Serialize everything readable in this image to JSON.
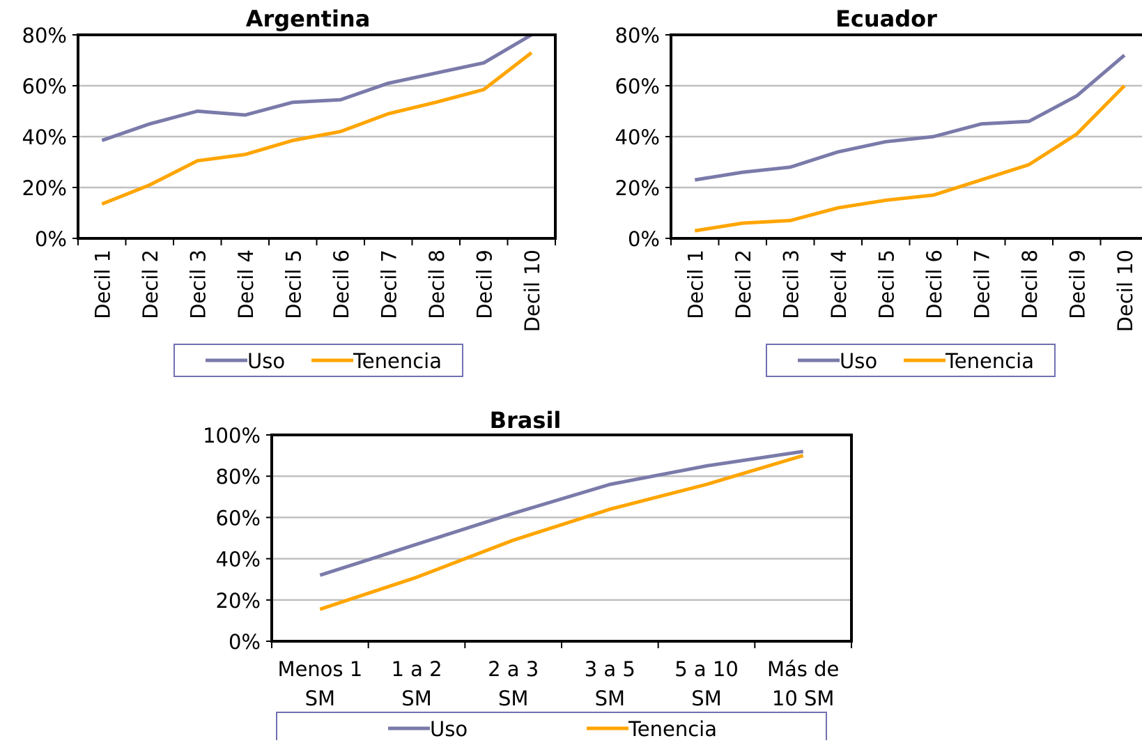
{
  "colors": {
    "uso": "#7a7aaa",
    "tenencia": "#ffa500",
    "grid": "#c0c0c0",
    "frame": "#000000",
    "legend_border": "#7070b0"
  },
  "chart_data": [
    {
      "type": "line",
      "title": "Argentina",
      "xlabel": "",
      "ylabel": "",
      "ylim": [
        0,
        0.8
      ],
      "yticks": [
        "0%",
        "20%",
        "40%",
        "60%",
        "80%"
      ],
      "categories": [
        "Decil 1",
        "Decil 2",
        "Decil 3",
        "Decil 4",
        "Decil 5",
        "Decil 6",
        "Decil 7",
        "Decil 8",
        "Decil 9",
        "Decil 10"
      ],
      "series": [
        {
          "name": "Uso",
          "values": [
            0.385,
            0.45,
            0.5,
            0.485,
            0.535,
            0.545,
            0.61,
            0.65,
            0.69,
            0.8
          ]
        },
        {
          "name": "Tenencia",
          "values": [
            0.135,
            0.21,
            0.305,
            0.33,
            0.385,
            0.42,
            0.49,
            0.535,
            0.585,
            0.73
          ]
        }
      ],
      "grid": true,
      "legend": "bottom"
    },
    {
      "type": "line",
      "title": "Ecuador",
      "xlabel": "",
      "ylabel": "",
      "ylim": [
        0,
        0.8
      ],
      "yticks": [
        "0%",
        "20%",
        "40%",
        "60%",
        "80%"
      ],
      "categories": [
        "Decil 1",
        "Decil 2",
        "Decil 3",
        "Decil 4",
        "Decil 5",
        "Decil 6",
        "Decil 7",
        "Decil 8",
        "Decil 9",
        "Decil 10"
      ],
      "series": [
        {
          "name": "Uso",
          "values": [
            0.23,
            0.26,
            0.28,
            0.34,
            0.38,
            0.4,
            0.45,
            0.46,
            0.56,
            0.72
          ]
        },
        {
          "name": "Tenencia",
          "values": [
            0.03,
            0.06,
            0.07,
            0.12,
            0.15,
            0.17,
            0.23,
            0.29,
            0.41,
            0.6
          ]
        }
      ],
      "grid": true,
      "legend": "bottom"
    },
    {
      "type": "line",
      "title": "Brasil",
      "xlabel": "",
      "ylabel": "",
      "ylim": [
        0,
        1.0
      ],
      "yticks": [
        "0%",
        "20%",
        "40%",
        "60%",
        "80%",
        "100%"
      ],
      "categories": [
        "Menos 1 SM",
        "1 a 2 SM",
        "2 a 3 SM",
        "3 a 5 SM",
        "5 a 10 SM",
        "Más de 10 SM"
      ],
      "category_lines": [
        [
          "Menos 1",
          "SM"
        ],
        [
          "1 a 2",
          "SM"
        ],
        [
          "2 a 3",
          "SM"
        ],
        [
          "3 a 5",
          "SM"
        ],
        [
          "5 a 10",
          "SM"
        ],
        [
          "Más de",
          "10 SM"
        ]
      ],
      "series": [
        {
          "name": "Uso",
          "values": [
            0.32,
            0.47,
            0.62,
            0.76,
            0.85,
            0.92
          ]
        },
        {
          "name": "Tenencia",
          "values": [
            0.155,
            0.31,
            0.49,
            0.64,
            0.76,
            0.9
          ]
        }
      ],
      "grid": true,
      "legend": "bottom"
    }
  ]
}
